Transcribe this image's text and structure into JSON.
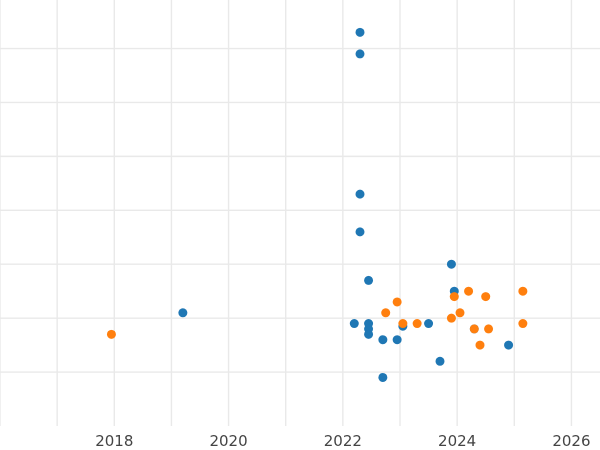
{
  "chart_data": {
    "type": "scatter",
    "title": "",
    "xlabel": "",
    "ylabel": "",
    "xlim": [
      2016.0,
      2026.5
    ],
    "ylim": [
      -1.0,
      6.9
    ],
    "grid": true,
    "x_ticks": [
      {
        "value": 2018,
        "label": "2018"
      },
      {
        "value": 2020,
        "label": "2020"
      },
      {
        "value": 2022,
        "label": "2022"
      },
      {
        "value": 2024,
        "label": "2024"
      },
      {
        "value": 2026,
        "label": "2026"
      }
    ],
    "y_gridlines": [
      0,
      1,
      2,
      3,
      4,
      5,
      6
    ],
    "series": [
      {
        "color": "#1f77b4",
        "points": [
          {
            "x": 2019.2,
            "y": 1.1
          },
          {
            "x": 2022.2,
            "y": 0.9
          },
          {
            "x": 2022.3,
            "y": 6.3
          },
          {
            "x": 2022.3,
            "y": 5.9
          },
          {
            "x": 2022.3,
            "y": 3.3
          },
          {
            "x": 2022.3,
            "y": 2.6
          },
          {
            "x": 2022.45,
            "y": 1.7
          },
          {
            "x": 2022.45,
            "y": 0.9
          },
          {
            "x": 2022.45,
            "y": 0.8
          },
          {
            "x": 2022.45,
            "y": 0.7
          },
          {
            "x": 2022.7,
            "y": 0.6
          },
          {
            "x": 2022.7,
            "y": -0.1
          },
          {
            "x": 2022.95,
            "y": 0.6
          },
          {
            "x": 2023.05,
            "y": 0.85
          },
          {
            "x": 2023.5,
            "y": 0.9
          },
          {
            "x": 2023.7,
            "y": 0.2
          },
          {
            "x": 2023.9,
            "y": 2.0
          },
          {
            "x": 2023.95,
            "y": 1.5
          },
          {
            "x": 2024.3,
            "y": 0.8
          },
          {
            "x": 2024.9,
            "y": 0.5
          }
        ]
      },
      {
        "color": "#ff7f0e",
        "points": [
          {
            "x": 2017.95,
            "y": 0.7
          },
          {
            "x": 2022.75,
            "y": 1.1
          },
          {
            "x": 2022.95,
            "y": 1.3
          },
          {
            "x": 2023.05,
            "y": 0.9
          },
          {
            "x": 2023.3,
            "y": 0.9
          },
          {
            "x": 2023.9,
            "y": 1.0
          },
          {
            "x": 2023.95,
            "y": 1.4
          },
          {
            "x": 2024.05,
            "y": 1.1
          },
          {
            "x": 2024.2,
            "y": 1.5
          },
          {
            "x": 2024.3,
            "y": 0.8
          },
          {
            "x": 2024.4,
            "y": 0.5
          },
          {
            "x": 2024.5,
            "y": 1.4
          },
          {
            "x": 2024.55,
            "y": 0.8
          },
          {
            "x": 2025.15,
            "y": 1.5
          },
          {
            "x": 2025.15,
            "y": 0.9
          }
        ]
      }
    ]
  }
}
